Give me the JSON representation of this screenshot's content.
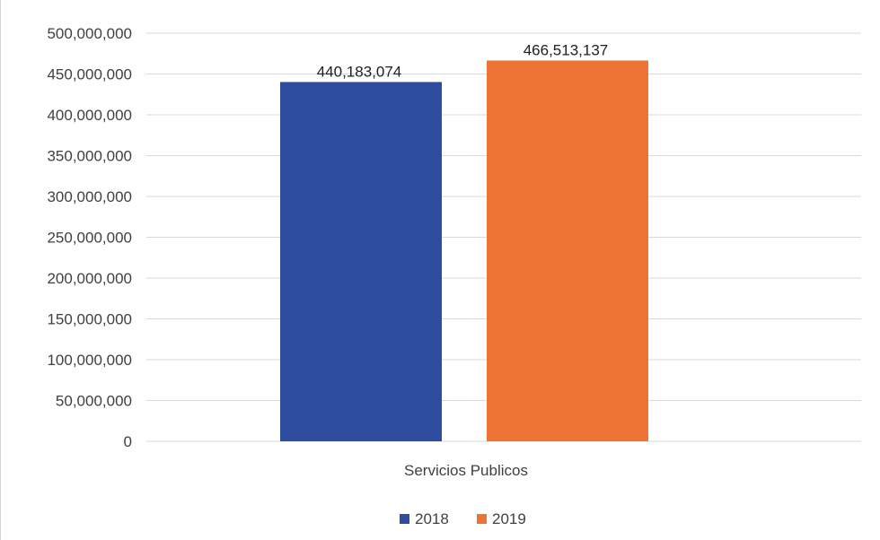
{
  "chart_data": {
    "type": "bar",
    "title": "",
    "xlabel": "",
    "ylabel": "",
    "categories": [
      "Servicios Publicos"
    ],
    "series": [
      {
        "name": "2018",
        "values": [
          440183074
        ],
        "value_labels": [
          "440,183,074"
        ],
        "color": "#2E4D9F"
      },
      {
        "name": "2019",
        "values": [
          466513137
        ],
        "value_labels": [
          "466,513,137"
        ],
        "color": "#EE7433"
      }
    ],
    "ylim": [
      0,
      500000000
    ],
    "y_ticks": [
      0,
      50000000,
      100000000,
      150000000,
      200000000,
      250000000,
      300000000,
      350000000,
      400000000,
      450000000,
      500000000
    ],
    "y_tick_labels": [
      "0",
      "50,000,000",
      "100,000,000",
      "150,000,000",
      "200,000,000",
      "250,000,000",
      "300,000,000",
      "350,000,000",
      "400,000,000",
      "450,000,000",
      "500,000,000"
    ],
    "grid": true,
    "legend_position": "bottom",
    "gridline_color": "#D9D9D9"
  }
}
